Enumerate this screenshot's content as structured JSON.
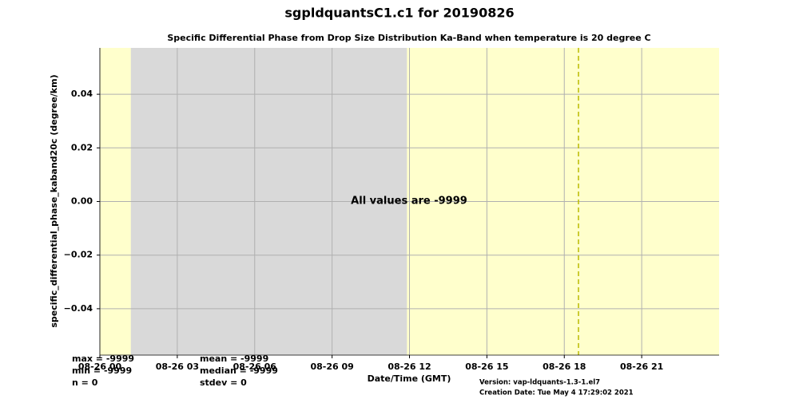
{
  "chart_data": {
    "type": "line",
    "title": "sgpldquantsC1.c1 for 20190826",
    "subtitle": "Specific Differential Phase from Drop Size Distribution Ka-Band when temperature is 20 degree C",
    "ylabel": "specific_differential_phase_kaband20c (degree/km)",
    "xlabel": "Date/Time (GMT)",
    "annotation": "All values are -9999",
    "series": [],
    "background_color": "#ffffcc",
    "shaded_spans": [
      {
        "start": 1.2,
        "end": 11.9,
        "color": "#d9d9d9"
      }
    ],
    "vlines": [
      {
        "x": 18.55,
        "color": "#bbbb00",
        "style": "dashed"
      }
    ],
    "xlim": [
      0,
      24
    ],
    "xticks": [
      {
        "value": 0,
        "label": "08-26 00"
      },
      {
        "value": 3,
        "label": "08-26 03"
      },
      {
        "value": 6,
        "label": "08-26 06"
      },
      {
        "value": 9,
        "label": "08-26 09"
      },
      {
        "value": 12,
        "label": "08-26 12"
      },
      {
        "value": 15,
        "label": "08-26 15"
      },
      {
        "value": 18,
        "label": "08-26 18"
      },
      {
        "value": 21,
        "label": "08-26 21"
      }
    ],
    "ylim": [
      -0.0573,
      0.0573
    ],
    "yticks": [
      {
        "value": -0.04,
        "label": "−0.04"
      },
      {
        "value": -0.02,
        "label": "−0.02"
      },
      {
        "value": 0,
        "label": "0.00"
      },
      0.02,
      0.04
    ],
    "grid": true,
    "stats": [
      [
        "max = -9999",
        "min = -9999",
        "n = 0"
      ],
      [
        "mean = -9999",
        "median = -9999",
        "stdev = 0"
      ]
    ],
    "footer": [
      "Version: vap-ldquants-1.3-1.el7",
      "Creation Date: Tue May  4 17:29:02 2021"
    ]
  }
}
